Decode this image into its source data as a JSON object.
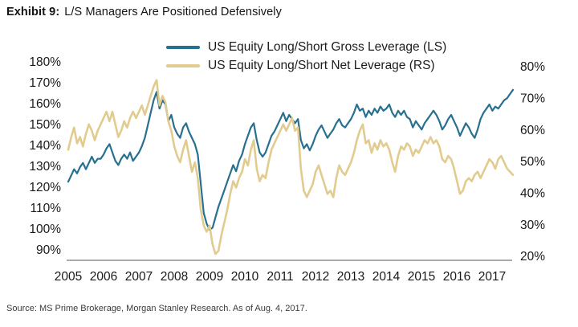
{
  "title": {
    "exhibit": "Exhibit 9:",
    "text": "L/S Managers Are Positioned Defensively"
  },
  "legend": {
    "items": [
      {
        "label": "US Equity Long/Short Gross Leverage (LS)",
        "color": "#27708F"
      },
      {
        "label": "US Equity Long/Short Net Leverage (RS)",
        "color": "#E2CB8E"
      }
    ]
  },
  "source": "Source: MS Prime Brokerage, Morgan Stanley Research. As of Aug. 4, 2017.",
  "chart_data": {
    "type": "line",
    "grid": false,
    "legend_position": "top",
    "x_start": "2005-01",
    "x_end": "2017-08",
    "x_tick_labels": [
      "2005",
      "2006",
      "2007",
      "2008",
      "2009",
      "2010",
      "2011",
      "2012",
      "2013",
      "2014",
      "2015",
      "2016",
      "2017"
    ],
    "left_axis": {
      "min": 90,
      "max": 180,
      "step": 10,
      "ticks": [
        "180%",
        "170%",
        "160%",
        "150%",
        "140%",
        "130%",
        "120%",
        "110%",
        "100%",
        "90%"
      ]
    },
    "right_axis": {
      "min": 20,
      "max": 80,
      "step": 10,
      "ticks": [
        "80%",
        "70%",
        "60%",
        "50%",
        "40%",
        "30%",
        "20%"
      ]
    },
    "series": [
      {
        "name": "US Equity Long/Short Gross Leverage (LS)",
        "axis": "left",
        "color": "#27708F",
        "stroke_width": 2.2,
        "values": [
          123,
          126,
          129,
          127,
          130,
          132,
          129,
          132,
          135,
          132,
          134,
          134,
          136,
          139,
          141,
          137,
          133,
          131,
          134,
          136,
          134,
          137,
          133,
          135,
          137,
          140,
          144,
          150,
          156,
          162,
          166,
          158,
          162,
          160,
          152,
          155,
          149,
          146,
          144,
          149,
          151,
          147,
          144,
          141,
          136,
          122,
          108,
          103,
          100,
          101,
          106,
          111,
          115,
          119,
          123,
          127,
          131,
          128,
          133,
          136,
          141,
          145,
          149,
          151,
          143,
          137,
          135,
          137,
          141,
          145,
          147,
          150,
          153,
          156,
          152,
          155,
          153,
          151,
          153,
          143,
          139,
          141,
          138,
          141,
          145,
          148,
          150,
          147,
          144,
          146,
          148,
          151,
          153,
          150,
          149,
          151,
          153,
          156,
          160,
          157,
          158,
          154,
          157,
          155,
          158,
          156,
          159,
          157,
          158,
          160,
          156,
          154,
          157,
          155,
          157,
          154,
          153,
          149,
          152,
          150,
          148,
          151,
          153,
          155,
          157,
          155,
          152,
          148,
          150,
          153,
          155,
          152,
          149,
          145,
          148,
          151,
          149,
          146,
          144,
          148,
          153,
          156,
          158,
          160,
          157,
          159,
          158,
          160,
          162,
          163,
          165,
          167
        ]
      },
      {
        "name": "US Equity Long/Short Net Leverage (RS)",
        "axis": "right",
        "color": "#E2CB8E",
        "stroke_width": 2.6,
        "values": [
          54,
          58,
          61,
          56,
          58,
          55,
          59,
          62,
          60,
          57,
          60,
          62,
          64,
          66,
          63,
          66,
          62,
          58,
          60,
          63,
          61,
          64,
          66,
          64,
          66,
          68,
          65,
          68,
          71,
          74,
          76,
          68,
          71,
          69,
          63,
          60,
          55,
          52,
          50,
          54,
          57,
          52,
          47,
          50,
          45,
          35,
          30,
          28,
          30,
          24,
          21,
          22,
          27,
          31,
          35,
          40,
          44,
          42,
          45,
          47,
          51,
          49,
          54,
          57,
          48,
          44,
          46,
          45,
          50,
          54,
          56,
          58,
          60,
          62,
          60,
          62,
          64,
          60,
          61,
          48,
          41,
          39,
          41,
          43,
          47,
          49,
          46,
          43,
          40,
          41,
          39,
          45,
          49,
          47,
          46,
          48,
          50,
          53,
          57,
          60,
          62,
          56,
          57,
          53,
          56,
          54,
          57,
          55,
          56,
          54,
          50,
          47,
          52,
          55,
          54,
          56,
          55,
          52,
          54,
          53,
          55,
          57,
          56,
          58,
          56,
          57,
          55,
          51,
          50,
          52,
          51,
          48,
          44,
          40,
          41,
          44,
          45,
          44,
          46,
          47,
          45,
          47,
          49,
          51,
          50,
          48,
          51,
          52,
          50,
          48,
          47,
          46
        ]
      }
    ]
  }
}
